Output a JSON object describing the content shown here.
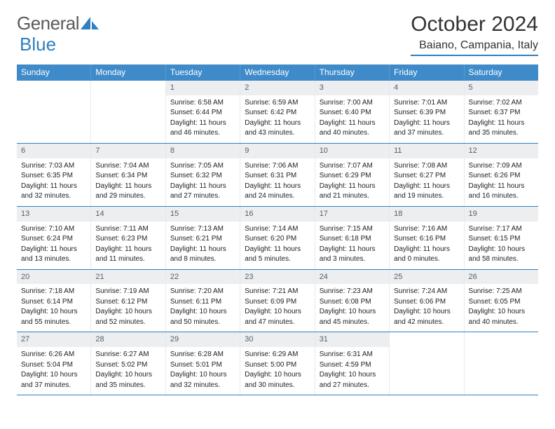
{
  "logo": {
    "text1": "General",
    "text2": "Blue"
  },
  "header": {
    "month_title": "October 2024",
    "location": "Baiano, Campania, Italy"
  },
  "colors": {
    "header_bar": "#3f8bca",
    "rule": "#2f7fc1",
    "daynum_bg": "#eceef0",
    "daynum_text": "#55606a"
  },
  "weekdays": [
    "Sunday",
    "Monday",
    "Tuesday",
    "Wednesday",
    "Thursday",
    "Friday",
    "Saturday"
  ],
  "weeks": [
    [
      {
        "n": "",
        "lines": []
      },
      {
        "n": "",
        "lines": []
      },
      {
        "n": "1",
        "lines": [
          "Sunrise: 6:58 AM",
          "Sunset: 6:44 PM",
          "Daylight: 11 hours",
          "and 46 minutes."
        ]
      },
      {
        "n": "2",
        "lines": [
          "Sunrise: 6:59 AM",
          "Sunset: 6:42 PM",
          "Daylight: 11 hours",
          "and 43 minutes."
        ]
      },
      {
        "n": "3",
        "lines": [
          "Sunrise: 7:00 AM",
          "Sunset: 6:40 PM",
          "Daylight: 11 hours",
          "and 40 minutes."
        ]
      },
      {
        "n": "4",
        "lines": [
          "Sunrise: 7:01 AM",
          "Sunset: 6:39 PM",
          "Daylight: 11 hours",
          "and 37 minutes."
        ]
      },
      {
        "n": "5",
        "lines": [
          "Sunrise: 7:02 AM",
          "Sunset: 6:37 PM",
          "Daylight: 11 hours",
          "and 35 minutes."
        ]
      }
    ],
    [
      {
        "n": "6",
        "lines": [
          "Sunrise: 7:03 AM",
          "Sunset: 6:35 PM",
          "Daylight: 11 hours",
          "and 32 minutes."
        ]
      },
      {
        "n": "7",
        "lines": [
          "Sunrise: 7:04 AM",
          "Sunset: 6:34 PM",
          "Daylight: 11 hours",
          "and 29 minutes."
        ]
      },
      {
        "n": "8",
        "lines": [
          "Sunrise: 7:05 AM",
          "Sunset: 6:32 PM",
          "Daylight: 11 hours",
          "and 27 minutes."
        ]
      },
      {
        "n": "9",
        "lines": [
          "Sunrise: 7:06 AM",
          "Sunset: 6:31 PM",
          "Daylight: 11 hours",
          "and 24 minutes."
        ]
      },
      {
        "n": "10",
        "lines": [
          "Sunrise: 7:07 AM",
          "Sunset: 6:29 PM",
          "Daylight: 11 hours",
          "and 21 minutes."
        ]
      },
      {
        "n": "11",
        "lines": [
          "Sunrise: 7:08 AM",
          "Sunset: 6:27 PM",
          "Daylight: 11 hours",
          "and 19 minutes."
        ]
      },
      {
        "n": "12",
        "lines": [
          "Sunrise: 7:09 AM",
          "Sunset: 6:26 PM",
          "Daylight: 11 hours",
          "and 16 minutes."
        ]
      }
    ],
    [
      {
        "n": "13",
        "lines": [
          "Sunrise: 7:10 AM",
          "Sunset: 6:24 PM",
          "Daylight: 11 hours",
          "and 13 minutes."
        ]
      },
      {
        "n": "14",
        "lines": [
          "Sunrise: 7:11 AM",
          "Sunset: 6:23 PM",
          "Daylight: 11 hours",
          "and 11 minutes."
        ]
      },
      {
        "n": "15",
        "lines": [
          "Sunrise: 7:13 AM",
          "Sunset: 6:21 PM",
          "Daylight: 11 hours",
          "and 8 minutes."
        ]
      },
      {
        "n": "16",
        "lines": [
          "Sunrise: 7:14 AM",
          "Sunset: 6:20 PM",
          "Daylight: 11 hours",
          "and 5 minutes."
        ]
      },
      {
        "n": "17",
        "lines": [
          "Sunrise: 7:15 AM",
          "Sunset: 6:18 PM",
          "Daylight: 11 hours",
          "and 3 minutes."
        ]
      },
      {
        "n": "18",
        "lines": [
          "Sunrise: 7:16 AM",
          "Sunset: 6:16 PM",
          "Daylight: 11 hours",
          "and 0 minutes."
        ]
      },
      {
        "n": "19",
        "lines": [
          "Sunrise: 7:17 AM",
          "Sunset: 6:15 PM",
          "Daylight: 10 hours",
          "and 58 minutes."
        ]
      }
    ],
    [
      {
        "n": "20",
        "lines": [
          "Sunrise: 7:18 AM",
          "Sunset: 6:14 PM",
          "Daylight: 10 hours",
          "and 55 minutes."
        ]
      },
      {
        "n": "21",
        "lines": [
          "Sunrise: 7:19 AM",
          "Sunset: 6:12 PM",
          "Daylight: 10 hours",
          "and 52 minutes."
        ]
      },
      {
        "n": "22",
        "lines": [
          "Sunrise: 7:20 AM",
          "Sunset: 6:11 PM",
          "Daylight: 10 hours",
          "and 50 minutes."
        ]
      },
      {
        "n": "23",
        "lines": [
          "Sunrise: 7:21 AM",
          "Sunset: 6:09 PM",
          "Daylight: 10 hours",
          "and 47 minutes."
        ]
      },
      {
        "n": "24",
        "lines": [
          "Sunrise: 7:23 AM",
          "Sunset: 6:08 PM",
          "Daylight: 10 hours",
          "and 45 minutes."
        ]
      },
      {
        "n": "25",
        "lines": [
          "Sunrise: 7:24 AM",
          "Sunset: 6:06 PM",
          "Daylight: 10 hours",
          "and 42 minutes."
        ]
      },
      {
        "n": "26",
        "lines": [
          "Sunrise: 7:25 AM",
          "Sunset: 6:05 PM",
          "Daylight: 10 hours",
          "and 40 minutes."
        ]
      }
    ],
    [
      {
        "n": "27",
        "lines": [
          "Sunrise: 6:26 AM",
          "Sunset: 5:04 PM",
          "Daylight: 10 hours",
          "and 37 minutes."
        ]
      },
      {
        "n": "28",
        "lines": [
          "Sunrise: 6:27 AM",
          "Sunset: 5:02 PM",
          "Daylight: 10 hours",
          "and 35 minutes."
        ]
      },
      {
        "n": "29",
        "lines": [
          "Sunrise: 6:28 AM",
          "Sunset: 5:01 PM",
          "Daylight: 10 hours",
          "and 32 minutes."
        ]
      },
      {
        "n": "30",
        "lines": [
          "Sunrise: 6:29 AM",
          "Sunset: 5:00 PM",
          "Daylight: 10 hours",
          "and 30 minutes."
        ]
      },
      {
        "n": "31",
        "lines": [
          "Sunrise: 6:31 AM",
          "Sunset: 4:59 PM",
          "Daylight: 10 hours",
          "and 27 minutes."
        ]
      },
      {
        "n": "",
        "lines": []
      },
      {
        "n": "",
        "lines": []
      }
    ]
  ]
}
